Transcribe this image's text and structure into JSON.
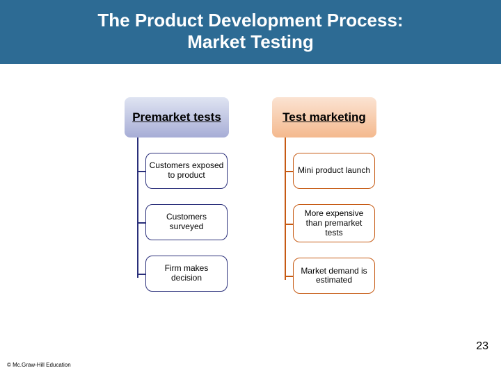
{
  "title": {
    "line1": "The Product Development Process:",
    "line2": "Market Testing",
    "background_color": "#2d6b94",
    "text_color": "#ffffff",
    "fontsize": 26
  },
  "columns": [
    {
      "header": "Premarket tests",
      "header_bg_top": "#dfe4f2",
      "header_bg_bottom": "#a7add6",
      "header_text_color": "#000000",
      "header_fontsize": 17,
      "spine_color": "#2a2f7a",
      "item_border_color": "#2a2f7a",
      "item_text_color": "#000000",
      "item_fontsize": 12,
      "items": [
        "Customers exposed to product",
        "Customers surveyed",
        "Firm makes decision"
      ]
    },
    {
      "header": "Test marketing",
      "header_bg_top": "#fbe3d2",
      "header_bg_bottom": "#f4b98e",
      "header_text_color": "#000000",
      "header_fontsize": 17,
      "spine_color": "#c65a13",
      "item_border_color": "#c65a13",
      "item_text_color": "#000000",
      "item_fontsize": 12,
      "items": [
        "Mini product launch",
        "More expensive than premarket tests",
        "Market demand is estimated"
      ]
    }
  ],
  "page_number": "23",
  "page_number_fontsize": 16,
  "copyright": "© Mc.Graw-Hill Education",
  "copyright_fontsize": 8
}
